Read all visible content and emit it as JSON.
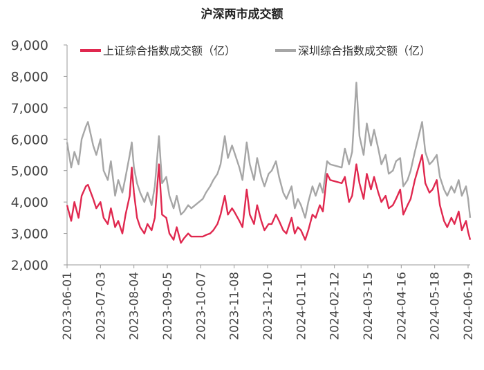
{
  "chart_data": {
    "type": "line",
    "title": "沪深两市成交额",
    "xlabel": "",
    "ylabel": "",
    "ylim": [
      2000,
      9000
    ],
    "y_ticks": [
      2000,
      3000,
      4000,
      5000,
      6000,
      7000,
      8000,
      9000
    ],
    "y_tick_labels": [
      "2,000",
      "3,000",
      "4,000",
      "5,000",
      "6,000",
      "7,000",
      "8,000",
      "9,000"
    ],
    "x_tick_labels": [
      "2023-06-01",
      "2023-07-03",
      "2023-08-04",
      "2023-09-05",
      "2023-10-07",
      "2023-11-08",
      "2023-12-10",
      "2024-01-11",
      "2024-02-12",
      "2024-03-15",
      "2024-04-16",
      "2024-05-18",
      "2024-06-19"
    ],
    "x_range": [
      "2023-06-01",
      "2024-06-21"
    ],
    "legend_position": "top",
    "grid": false,
    "series": [
      {
        "name": "上证综合指数成交额（亿）",
        "color": "#e0284f",
        "points": [
          [
            "2023-06-01",
            3900
          ],
          [
            "2023-06-05",
            3400
          ],
          [
            "2023-06-08",
            4000
          ],
          [
            "2023-06-12",
            3500
          ],
          [
            "2023-06-15",
            4200
          ],
          [
            "2023-06-19",
            4500
          ],
          [
            "2023-06-21",
            4550
          ],
          [
            "2023-06-26",
            4100
          ],
          [
            "2023-06-29",
            3800
          ],
          [
            "2023-07-03",
            4000
          ],
          [
            "2023-07-06",
            3500
          ],
          [
            "2023-07-10",
            3300
          ],
          [
            "2023-07-13",
            3800
          ],
          [
            "2023-07-17",
            3200
          ],
          [
            "2023-07-20",
            3400
          ],
          [
            "2023-07-24",
            3000
          ],
          [
            "2023-07-27",
            3600
          ],
          [
            "2023-07-31",
            4200
          ],
          [
            "2023-08-02",
            5100
          ],
          [
            "2023-08-04",
            4300
          ],
          [
            "2023-08-07",
            3500
          ],
          [
            "2023-08-10",
            3200
          ],
          [
            "2023-08-14",
            3000
          ],
          [
            "2023-08-17",
            3300
          ],
          [
            "2023-08-21",
            3100
          ],
          [
            "2023-08-24",
            3500
          ],
          [
            "2023-08-28",
            5200
          ],
          [
            "2023-08-31",
            3600
          ],
          [
            "2023-09-04",
            3500
          ],
          [
            "2023-09-07",
            3000
          ],
          [
            "2023-09-11",
            2800
          ],
          [
            "2023-09-14",
            3200
          ],
          [
            "2023-09-18",
            2700
          ],
          [
            "2023-09-21",
            2850
          ],
          [
            "2023-09-25",
            3000
          ],
          [
            "2023-09-28",
            2900
          ],
          [
            "2023-10-09",
            2900
          ],
          [
            "2023-10-12",
            2950
          ],
          [
            "2023-10-16",
            3000
          ],
          [
            "2023-10-19",
            3100
          ],
          [
            "2023-10-23",
            3300
          ],
          [
            "2023-10-26",
            3600
          ],
          [
            "2023-10-30",
            4200
          ],
          [
            "2023-11-02",
            3600
          ],
          [
            "2023-11-06",
            3800
          ],
          [
            "2023-11-08",
            3700
          ],
          [
            "2023-11-13",
            3400
          ],
          [
            "2023-11-16",
            3200
          ],
          [
            "2023-11-20",
            4400
          ],
          [
            "2023-11-23",
            3600
          ],
          [
            "2023-11-27",
            3300
          ],
          [
            "2023-11-30",
            3900
          ],
          [
            "2023-12-04",
            3400
          ],
          [
            "2023-12-07",
            3100
          ],
          [
            "2023-12-11",
            3300
          ],
          [
            "2023-12-14",
            3300
          ],
          [
            "2023-12-18",
            3600
          ],
          [
            "2023-12-21",
            3400
          ],
          [
            "2023-12-25",
            3100
          ],
          [
            "2023-12-28",
            3000
          ],
          [
            "2024-01-02",
            3500
          ],
          [
            "2024-01-05",
            3000
          ],
          [
            "2024-01-08",
            3200
          ],
          [
            "2024-01-11",
            3100
          ],
          [
            "2024-01-15",
            2800
          ],
          [
            "2024-01-18",
            3100
          ],
          [
            "2024-01-22",
            3600
          ],
          [
            "2024-01-25",
            3500
          ],
          [
            "2024-01-29",
            3900
          ],
          [
            "2024-02-01",
            3700
          ],
          [
            "2024-02-05",
            4900
          ],
          [
            "2024-02-08",
            4700
          ],
          [
            "2024-02-19",
            4600
          ],
          [
            "2024-02-22",
            4800
          ],
          [
            "2024-02-26",
            4000
          ],
          [
            "2024-02-29",
            4200
          ],
          [
            "2024-03-04",
            5200
          ],
          [
            "2024-03-07",
            4600
          ],
          [
            "2024-03-11",
            4100
          ],
          [
            "2024-03-14",
            4900
          ],
          [
            "2024-03-18",
            4400
          ],
          [
            "2024-03-21",
            4800
          ],
          [
            "2024-03-25",
            4300
          ],
          [
            "2024-03-28",
            4000
          ],
          [
            "2024-04-01",
            4200
          ],
          [
            "2024-04-04",
            3800
          ],
          [
            "2024-04-08",
            3900
          ],
          [
            "2024-04-11",
            4100
          ],
          [
            "2024-04-15",
            4400
          ],
          [
            "2024-04-18",
            3600
          ],
          [
            "2024-04-22",
            3900
          ],
          [
            "2024-04-25",
            4100
          ],
          [
            "2024-04-29",
            4700
          ],
          [
            "2024-05-06",
            5500
          ],
          [
            "2024-05-09",
            4600
          ],
          [
            "2024-05-13",
            4300
          ],
          [
            "2024-05-16",
            4400
          ],
          [
            "2024-05-20",
            4700
          ],
          [
            "2024-05-23",
            3900
          ],
          [
            "2024-05-27",
            3400
          ],
          [
            "2024-05-30",
            3200
          ],
          [
            "2024-06-03",
            3500
          ],
          [
            "2024-06-06",
            3300
          ],
          [
            "2024-06-10",
            3700
          ],
          [
            "2024-06-13",
            3100
          ],
          [
            "2024-06-17",
            3400
          ],
          [
            "2024-06-19",
            3050
          ],
          [
            "2024-06-21",
            2800
          ]
        ]
      },
      {
        "name": "深圳综合指数成交额（亿）",
        "color": "#a6a6a6",
        "points": [
          [
            "2023-06-01",
            5900
          ],
          [
            "2023-06-05",
            5100
          ],
          [
            "2023-06-08",
            5600
          ],
          [
            "2023-06-12",
            5200
          ],
          [
            "2023-06-15",
            6000
          ],
          [
            "2023-06-19",
            6400
          ],
          [
            "2023-06-21",
            6550
          ],
          [
            "2023-06-26",
            5800
          ],
          [
            "2023-06-29",
            5500
          ],
          [
            "2023-07-03",
            6000
          ],
          [
            "2023-07-06",
            5000
          ],
          [
            "2023-07-10",
            4700
          ],
          [
            "2023-07-13",
            5300
          ],
          [
            "2023-07-17",
            4200
          ],
          [
            "2023-07-20",
            4700
          ],
          [
            "2023-07-24",
            4300
          ],
          [
            "2023-07-27",
            4800
          ],
          [
            "2023-07-31",
            5500
          ],
          [
            "2023-08-02",
            5900
          ],
          [
            "2023-08-04",
            5100
          ],
          [
            "2023-08-07",
            4600
          ],
          [
            "2023-08-10",
            4300
          ],
          [
            "2023-08-14",
            4000
          ],
          [
            "2023-08-17",
            4300
          ],
          [
            "2023-08-21",
            3900
          ],
          [
            "2023-08-24",
            4500
          ],
          [
            "2023-08-28",
            6100
          ],
          [
            "2023-08-31",
            4600
          ],
          [
            "2023-09-04",
            4800
          ],
          [
            "2023-09-07",
            4200
          ],
          [
            "2023-09-11",
            3800
          ],
          [
            "2023-09-14",
            4200
          ],
          [
            "2023-09-18",
            3600
          ],
          [
            "2023-09-21",
            3700
          ],
          [
            "2023-09-25",
            3900
          ],
          [
            "2023-09-28",
            3800
          ],
          [
            "2023-10-09",
            4100
          ],
          [
            "2023-10-12",
            4300
          ],
          [
            "2023-10-16",
            4500
          ],
          [
            "2023-10-19",
            4700
          ],
          [
            "2023-10-23",
            4900
          ],
          [
            "2023-10-26",
            5200
          ],
          [
            "2023-10-30",
            6100
          ],
          [
            "2023-11-02",
            5400
          ],
          [
            "2023-11-06",
            5800
          ],
          [
            "2023-11-08",
            5600
          ],
          [
            "2023-11-13",
            5100
          ],
          [
            "2023-11-16",
            4700
          ],
          [
            "2023-11-20",
            5900
          ],
          [
            "2023-11-23",
            5200
          ],
          [
            "2023-11-27",
            4700
          ],
          [
            "2023-11-30",
            5400
          ],
          [
            "2023-12-04",
            4800
          ],
          [
            "2023-12-07",
            4500
          ],
          [
            "2023-12-11",
            4900
          ],
          [
            "2023-12-14",
            5000
          ],
          [
            "2023-12-18",
            5300
          ],
          [
            "2023-12-21",
            4800
          ],
          [
            "2023-12-25",
            4300
          ],
          [
            "2023-12-28",
            4100
          ],
          [
            "2024-01-02",
            4500
          ],
          [
            "2024-01-05",
            3800
          ],
          [
            "2024-01-08",
            4100
          ],
          [
            "2024-01-11",
            3900
          ],
          [
            "2024-01-15",
            3500
          ],
          [
            "2024-01-18",
            4000
          ],
          [
            "2024-01-22",
            4500
          ],
          [
            "2024-01-25",
            4200
          ],
          [
            "2024-01-29",
            4600
          ],
          [
            "2024-02-01",
            4300
          ],
          [
            "2024-02-05",
            5300
          ],
          [
            "2024-02-08",
            5200
          ],
          [
            "2024-02-19",
            5100
          ],
          [
            "2024-02-22",
            5700
          ],
          [
            "2024-02-26",
            5200
          ],
          [
            "2024-02-29",
            5600
          ],
          [
            "2024-03-04",
            7800
          ],
          [
            "2024-03-07",
            6100
          ],
          [
            "2024-03-11",
            5500
          ],
          [
            "2024-03-14",
            6500
          ],
          [
            "2024-03-18",
            5800
          ],
          [
            "2024-03-21",
            6300
          ],
          [
            "2024-03-25",
            5700
          ],
          [
            "2024-03-28",
            5200
          ],
          [
            "2024-04-01",
            5500
          ],
          [
            "2024-04-04",
            4900
          ],
          [
            "2024-04-08",
            5000
          ],
          [
            "2024-04-11",
            5300
          ],
          [
            "2024-04-15",
            5400
          ],
          [
            "2024-04-18",
            4500
          ],
          [
            "2024-04-22",
            4700
          ],
          [
            "2024-04-25",
            5000
          ],
          [
            "2024-04-29",
            5600
          ],
          [
            "2024-05-06",
            6550
          ],
          [
            "2024-05-09",
            5600
          ],
          [
            "2024-05-13",
            5200
          ],
          [
            "2024-05-16",
            5300
          ],
          [
            "2024-05-20",
            5500
          ],
          [
            "2024-05-23",
            4800
          ],
          [
            "2024-05-27",
            4400
          ],
          [
            "2024-05-30",
            4200
          ],
          [
            "2024-06-03",
            4500
          ],
          [
            "2024-06-06",
            4300
          ],
          [
            "2024-06-10",
            4700
          ],
          [
            "2024-06-13",
            4200
          ],
          [
            "2024-06-17",
            4500
          ],
          [
            "2024-06-19",
            4100
          ],
          [
            "2024-06-21",
            3500
          ]
        ]
      }
    ]
  }
}
